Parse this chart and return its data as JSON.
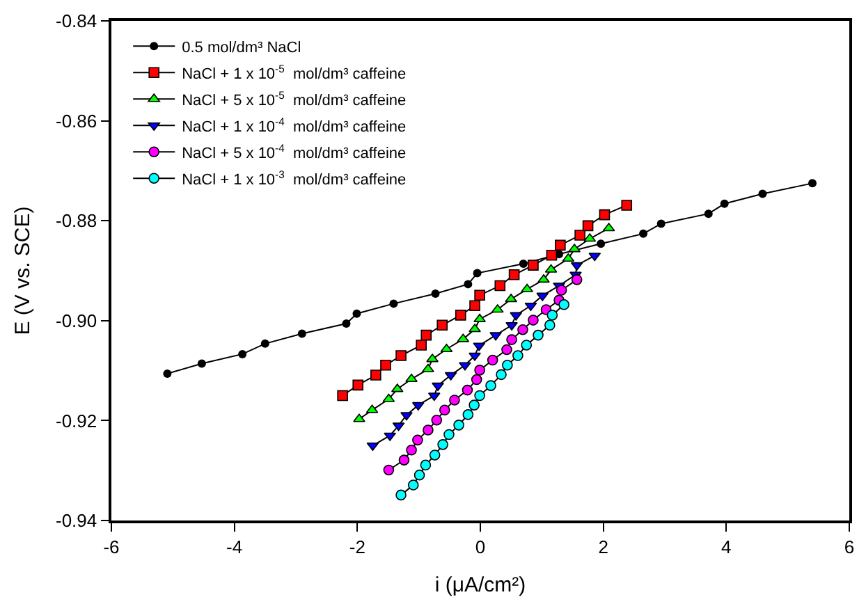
{
  "chart_data": {
    "type": "line",
    "xlabel": "i (μA/cm²)",
    "ylabel": "E (V vs. SCE)",
    "xlim": [
      -6,
      6
    ],
    "xticks": [
      -6,
      -4,
      -2,
      0,
      2,
      4,
      6
    ],
    "ylim": [
      -0.94,
      -0.84
    ],
    "yticks": [
      -0.94,
      -0.92,
      {
        "value": -0.9,
        "label": "-0.90"
      },
      -0.88,
      -0.86,
      -0.84
    ],
    "legend": "top left",
    "line_style": "solid",
    "series": [
      {
        "name": "0.5 mol/dm³ NaCl",
        "color": "#000000",
        "marker": "circle",
        "x": [
          -5.09,
          -4.53,
          -3.87,
          -3.5,
          -2.9,
          -2.18,
          -2.01,
          -1.41,
          -0.73,
          -0.2,
          -0.05,
          0.7,
          1.28,
          1.96,
          2.65,
          2.94,
          3.71,
          3.97,
          4.59,
          5.4
        ],
        "values": [
          -0.9106,
          -0.9086,
          -0.9067,
          -0.9046,
          -0.9026,
          -0.9006,
          -0.8986,
          -0.8966,
          -0.8946,
          -0.8927,
          -0.8905,
          -0.8886,
          -0.8867,
          -0.8846,
          -0.8826,
          -0.8806,
          -0.8786,
          -0.8766,
          -0.8746,
          -0.8725
        ]
      },
      {
        "name": "NaCl + 1 x 10$^{-5}$  mol/dm³ caffeine",
        "color": "#ff0000",
        "marker": "square",
        "x": [
          -2.24,
          -1.99,
          -1.7,
          -1.54,
          -1.29,
          -0.96,
          -0.88,
          -0.62,
          -0.32,
          -0.09,
          -0.01,
          0.32,
          0.55,
          0.86,
          1.16,
          1.3,
          1.62,
          1.75,
          2.02,
          2.38
        ],
        "values": [
          -0.915,
          -0.9129,
          -0.9109,
          -0.9089,
          -0.907,
          -0.9049,
          -0.9029,
          -0.9009,
          -0.8989,
          -0.897,
          -0.8949,
          -0.893,
          -0.8908,
          -0.8889,
          -0.8869,
          -0.8849,
          -0.8829,
          -0.881,
          -0.8788,
          -0.8769
        ]
      },
      {
        "name": "NaCl + 5 x 10$^{-5}$  mol/dm³ caffeine",
        "color": "#00ff00",
        "marker": "triangle",
        "x": [
          -1.97,
          -1.76,
          -1.49,
          -1.35,
          -1.12,
          -0.85,
          -0.78,
          -0.55,
          -0.28,
          -0.09,
          -0.01,
          0.28,
          0.5,
          0.76,
          1.03,
          1.15,
          1.43,
          1.53,
          1.78,
          2.09
        ],
        "values": [
          -0.9197,
          -0.9179,
          -0.9157,
          -0.9137,
          -0.9117,
          -0.9097,
          -0.9077,
          -0.9057,
          -0.9037,
          -0.9017,
          -0.8997,
          -0.8978,
          -0.8957,
          -0.8937,
          -0.8918,
          -0.8898,
          -0.8876,
          -0.8857,
          -0.8836,
          -0.8815
        ]
      },
      {
        "name": "NaCl + 1 x 10$^{-4}$  mol/dm³ caffeine",
        "color": "#0000ff",
        "marker": "triangle-down",
        "x": [
          -1.75,
          -1.47,
          -1.33,
          -1.2,
          -1.01,
          -0.75,
          -0.69,
          -0.48,
          -0.25,
          -0.09,
          -0.02,
          0.25,
          0.51,
          0.58,
          0.82,
          1.01,
          1.28,
          1.55,
          1.57,
          1.86
        ],
        "values": [
          -0.925,
          -0.923,
          -0.921,
          -0.9189,
          -0.9169,
          -0.915,
          -0.913,
          -0.9109,
          -0.9089,
          -0.907,
          -0.905,
          -0.9029,
          -0.9009,
          -0.8989,
          -0.897,
          -0.895,
          -0.893,
          -0.8908,
          -0.8889,
          -0.887
        ]
      },
      {
        "name": "NaCl + 5 x 10$^{-4}$  mol/dm³ caffeine",
        "color": "#ff00ff",
        "marker": "circle",
        "x": [
          -1.49,
          -1.24,
          -1.12,
          -1.02,
          -0.85,
          -0.71,
          -0.58,
          -0.42,
          -0.21,
          -0.06,
          -0.01,
          0.2,
          0.43,
          0.51,
          0.69,
          0.86,
          1.07,
          1.28,
          1.32,
          1.57
        ],
        "values": [
          -0.9299,
          -0.9279,
          -0.9259,
          -0.9239,
          -0.9219,
          -0.9199,
          -0.9179,
          -0.9159,
          -0.9139,
          -0.9118,
          -0.9099,
          -0.9079,
          -0.9058,
          -0.9038,
          -0.9018,
          -0.8999,
          -0.8978,
          -0.8959,
          -0.8939,
          -0.8918
        ]
      },
      {
        "name": "NaCl + 1 x 10$^{-3}$  mol/dm³ caffeine",
        "color": "#00ffff",
        "marker": "circle",
        "x": [
          -1.29,
          -1.09,
          -0.99,
          -0.89,
          -0.74,
          -0.61,
          -0.51,
          -0.35,
          -0.2,
          -0.1,
          -0.01,
          0.17,
          0.34,
          0.44,
          0.61,
          0.75,
          0.94,
          1.13,
          1.17,
          1.36
        ],
        "values": [
          -0.9349,
          -0.9329,
          -0.9309,
          -0.9289,
          -0.9269,
          -0.9248,
          -0.9228,
          -0.9209,
          -0.9188,
          -0.9169,
          -0.915,
          -0.913,
          -0.9108,
          -0.9089,
          -0.907,
          -0.9049,
          -0.9029,
          -0.9009,
          -0.8989,
          -0.8968
        ]
      }
    ]
  }
}
